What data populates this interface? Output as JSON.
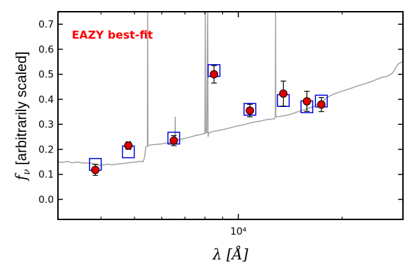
{
  "chart_data": {
    "type": "scatter",
    "title": "",
    "xlabel": "λ [Å]",
    "ylabel": "f_ν [arbitrarily scaled]",
    "ylabel_parts": {
      "symbol": "f",
      "sub": "ν",
      "rest": " [arbitrarily scaled]"
    },
    "xscale": "log",
    "xlim": [
      3000,
      30000
    ],
    "ylim": [
      -0.08,
      0.75
    ],
    "yticks": [
      0.0,
      0.1,
      0.2,
      0.3,
      0.4,
      0.5,
      0.6,
      0.7
    ],
    "ytick_labels": [
      "0.0",
      "0.1",
      "0.2",
      "0.3",
      "0.4",
      "0.5",
      "0.6",
      "0.7"
    ],
    "xticks_labeled": [
      10000
    ],
    "xtick_labels": [
      "10⁴"
    ],
    "xticks_minor": [
      4000,
      5000,
      6000,
      7000,
      8000,
      9000,
      20000
    ],
    "grid": false,
    "annotation": {
      "text": "EAZY best-fit",
      "color": "#ff0000",
      "position": "top-left"
    },
    "series": [
      {
        "type": "line",
        "color": "#a0a0a0",
        "points": [
          [
            3000,
            0.15
          ],
          [
            3100,
            0.148
          ],
          [
            3200,
            0.152
          ],
          [
            3300,
            0.146
          ],
          [
            3400,
            0.149
          ],
          [
            3500,
            0.147
          ],
          [
            3600,
            0.145
          ],
          [
            3700,
            0.146
          ],
          [
            3800,
            0.142
          ],
          [
            3900,
            0.138
          ],
          [
            4000,
            0.136
          ],
          [
            4100,
            0.139
          ],
          [
            4200,
            0.141
          ],
          [
            4300,
            0.138
          ],
          [
            4400,
            0.14
          ],
          [
            4500,
            0.142
          ],
          [
            4600,
            0.143
          ],
          [
            4700,
            0.145
          ],
          [
            4800,
            0.146
          ],
          [
            4900,
            0.148
          ],
          [
            5000,
            0.149
          ],
          [
            5100,
            0.15
          ],
          [
            5200,
            0.152
          ],
          [
            5300,
            0.151
          ],
          [
            5350,
            0.17
          ],
          [
            5380,
            0.2
          ],
          [
            5400,
            0.21
          ],
          [
            5450,
            0.212
          ],
          [
            5460,
            0.75
          ],
          [
            5470,
            0.215
          ],
          [
            5600,
            0.218
          ],
          [
            5800,
            0.22
          ],
          [
            6000,
            0.222
          ],
          [
            6200,
            0.225
          ],
          [
            6400,
            0.228
          ],
          [
            6550,
            0.23
          ],
          [
            6560,
            0.33
          ],
          [
            6570,
            0.235
          ],
          [
            6700,
            0.238
          ],
          [
            6900,
            0.242
          ],
          [
            7100,
            0.246
          ],
          [
            7300,
            0.25
          ],
          [
            7500,
            0.255
          ],
          [
            7700,
            0.258
          ],
          [
            7900,
            0.262
          ],
          [
            8000,
            0.264
          ],
          [
            8020,
            0.75
          ],
          [
            8040,
            0.266
          ],
          [
            8100,
            0.267
          ],
          [
            8150,
            0.75
          ],
          [
            8170,
            0.25
          ],
          [
            8200,
            0.265
          ],
          [
            8300,
            0.268
          ],
          [
            8500,
            0.272
          ],
          [
            8800,
            0.276
          ],
          [
            9100,
            0.28
          ],
          [
            9400,
            0.285
          ],
          [
            9700,
            0.29
          ],
          [
            10000,
            0.294
          ],
          [
            10500,
            0.3
          ],
          [
            11000,
            0.308
          ],
          [
            11500,
            0.312
          ],
          [
            12000,
            0.318
          ],
          [
            12700,
            0.322
          ],
          [
            12800,
            0.33
          ],
          [
            12820,
            0.75
          ],
          [
            12840,
            0.33
          ],
          [
            13000,
            0.33
          ],
          [
            13500,
            0.334
          ],
          [
            14000,
            0.338
          ],
          [
            14500,
            0.345
          ],
          [
            15000,
            0.352
          ],
          [
            15500,
            0.358
          ],
          [
            16000,
            0.365
          ],
          [
            16500,
            0.37
          ],
          [
            17000,
            0.38
          ],
          [
            17500,
            0.392
          ],
          [
            18000,
            0.405
          ],
          [
            18500,
            0.415
          ],
          [
            19000,
            0.422
          ],
          [
            19500,
            0.428
          ],
          [
            20000,
            0.433
          ],
          [
            21000,
            0.442
          ],
          [
            22000,
            0.452
          ],
          [
            23000,
            0.46
          ],
          [
            24000,
            0.468
          ],
          [
            25000,
            0.478
          ],
          [
            26000,
            0.487
          ],
          [
            27000,
            0.492
          ],
          [
            28000,
            0.505
          ],
          [
            29000,
            0.54
          ],
          [
            30000,
            0.553
          ]
        ]
      },
      {
        "type": "model_squares",
        "color": "#0000dd",
        "points": [
          [
            3850,
            0.14
          ],
          [
            4800,
            0.19
          ],
          [
            6500,
            0.245
          ],
          [
            8500,
            0.515
          ],
          [
            10800,
            0.36
          ],
          [
            13500,
            0.395
          ],
          [
            15800,
            0.37
          ],
          [
            17400,
            0.393
          ]
        ]
      },
      {
        "type": "observed_errorbar",
        "color": "#e00000",
        "points": [
          {
            "x": 3850,
            "y": 0.118,
            "err": 0.022
          },
          {
            "x": 4800,
            "y": 0.215,
            "err": 0.015
          },
          {
            "x": 6500,
            "y": 0.235,
            "err": 0.02
          },
          {
            "x": 8500,
            "y": 0.5,
            "err": 0.035
          },
          {
            "x": 10800,
            "y": 0.355,
            "err": 0.025
          },
          {
            "x": 13500,
            "y": 0.423,
            "err": 0.05
          },
          {
            "x": 15800,
            "y": 0.392,
            "err": 0.04
          },
          {
            "x": 17400,
            "y": 0.379,
            "err": 0.028
          }
        ]
      }
    ]
  }
}
